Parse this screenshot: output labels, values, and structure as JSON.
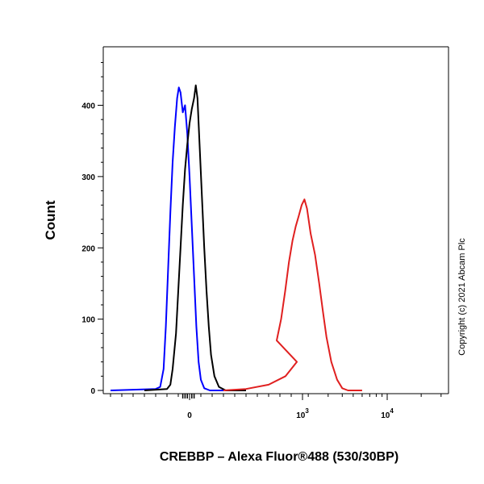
{
  "chart_data": {
    "type": "line",
    "title": "",
    "xlabel": "CREBBP – Alexa Fluor®488 (530/30BP)",
    "ylabel": "Count",
    "x_scale": "biexponential",
    "xlim": [
      -1000,
      30000
    ],
    "ylim": [
      0,
      470
    ],
    "y_ticks": [
      0,
      100,
      200,
      300,
      400
    ],
    "x_tick_labels": [
      {
        "value": 0,
        "base": "0",
        "exp": ""
      },
      {
        "value": 1000,
        "base": "10",
        "exp": "3"
      },
      {
        "value": 10000,
        "base": "10",
        "exp": "4"
      }
    ],
    "grid": false,
    "legend": "none",
    "series": [
      {
        "color": "#0000ff",
        "points": [
          [
            -700,
            0
          ],
          [
            -300,
            2
          ],
          [
            -260,
            5
          ],
          [
            -230,
            30
          ],
          [
            -210,
            90
          ],
          [
            -190,
            170
          ],
          [
            -170,
            250
          ],
          [
            -150,
            320
          ],
          [
            -130,
            370
          ],
          [
            -110,
            410
          ],
          [
            -95,
            425
          ],
          [
            -80,
            418
          ],
          [
            -60,
            390
          ],
          [
            -40,
            400
          ],
          [
            -20,
            360
          ],
          [
            0,
            300
          ],
          [
            20,
            230
          ],
          [
            40,
            160
          ],
          [
            60,
            90
          ],
          [
            80,
            40
          ],
          [
            100,
            15
          ],
          [
            130,
            3
          ],
          [
            180,
            0
          ],
          [
            300,
            0
          ]
        ]
      },
      {
        "color": "#000000",
        "points": [
          [
            -400,
            0
          ],
          [
            -200,
            2
          ],
          [
            -170,
            8
          ],
          [
            -150,
            30
          ],
          [
            -120,
            80
          ],
          [
            -100,
            140
          ],
          [
            -80,
            200
          ],
          [
            -60,
            260
          ],
          [
            -40,
            310
          ],
          [
            -20,
            345
          ],
          [
            0,
            375
          ],
          [
            20,
            395
          ],
          [
            40,
            410
          ],
          [
            55,
            428
          ],
          [
            70,
            410
          ],
          [
            90,
            340
          ],
          [
            110,
            270
          ],
          [
            130,
            200
          ],
          [
            150,
            140
          ],
          [
            170,
            90
          ],
          [
            190,
            50
          ],
          [
            220,
            20
          ],
          [
            260,
            5
          ],
          [
            320,
            0
          ],
          [
            500,
            0
          ]
        ]
      },
      {
        "color": "#e02020",
        "points": [
          [
            300,
            0
          ],
          [
            500,
            2
          ],
          [
            700,
            8
          ],
          [
            850,
            20
          ],
          [
            950,
            40
          ],
          [
            1050,
            70
          ],
          [
            1150,
            100
          ],
          [
            1250,
            140
          ],
          [
            1350,
            180
          ],
          [
            1450,
            210
          ],
          [
            1550,
            230
          ],
          [
            1650,
            245
          ],
          [
            1750,
            260
          ],
          [
            1850,
            268
          ],
          [
            1950,
            255
          ],
          [
            2100,
            220
          ],
          [
            2300,
            190
          ],
          [
            2500,
            150
          ],
          [
            2700,
            110
          ],
          [
            2900,
            75
          ],
          [
            3200,
            40
          ],
          [
            3600,
            15
          ],
          [
            4000,
            3
          ],
          [
            4500,
            0
          ],
          [
            6000,
            0
          ]
        ]
      }
    ]
  },
  "copyright": "Copyright (c) 2021 Abcam Plc"
}
